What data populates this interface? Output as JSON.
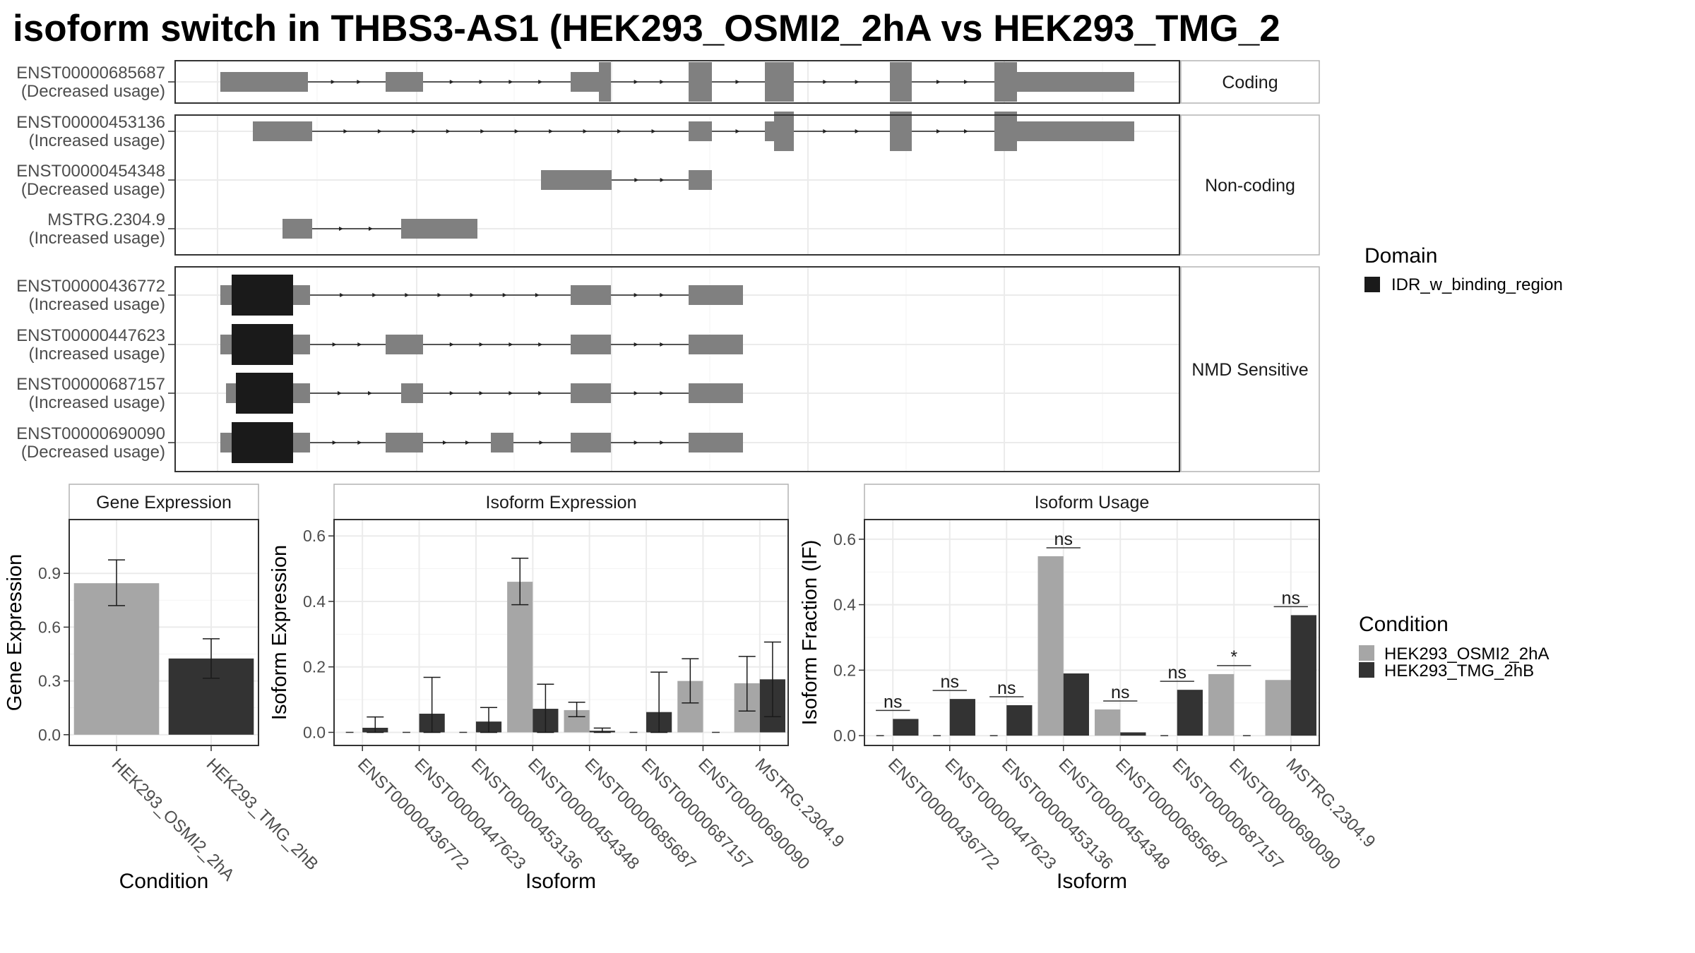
{
  "title": "isoform switch in THBS3-AS1 (HEK293_OSMI2_2hA vs HEK293_TMG_2",
  "colors": {
    "exon": "#808080",
    "domain": "#1a1a1a",
    "cond1": "#a6a6a6",
    "cond2": "#333333",
    "grid": "#ebebeb",
    "frame": "#333333",
    "strip_border": "#b3b3b3"
  },
  "structure": {
    "panels": [
      {
        "label": "Coding",
        "rows": [
          {
            "id": "ENST00000685687",
            "usage": "(Decreased usage)"
          }
        ]
      },
      {
        "label": "Non-coding",
        "rows": [
          {
            "id": "ENST00000453136",
            "usage": "(Increased usage)"
          },
          {
            "id": "ENST00000454348",
            "usage": "(Decreased usage)"
          },
          {
            "id": "MSTRG.2304.9",
            "usage": "(Increased usage)"
          }
        ]
      },
      {
        "label": "NMD Sensitive",
        "rows": [
          {
            "id": "ENST00000436772",
            "usage": "(Increased usage)"
          },
          {
            "id": "ENST00000447623",
            "usage": "(Increased usage)"
          },
          {
            "id": "ENST00000687157",
            "usage": "(Increased usage)"
          },
          {
            "id": "ENST00000690090",
            "usage": "(Decreased usage)"
          }
        ]
      }
    ]
  },
  "legend_domain": {
    "title": "Domain",
    "items": [
      "IDR_w_binding_region"
    ]
  },
  "legend_condition": {
    "title": "Condition",
    "items": [
      "HEK293_OSMI2_2hA",
      "HEK293_TMG_2hB"
    ]
  },
  "chart_data": [
    {
      "type": "bar",
      "title": "Gene Expression",
      "xlabel": "Condition",
      "ylabel": "Gene Expression",
      "ylim": [
        -0.06,
        1.2
      ],
      "yticks": [
        0.0,
        0.3,
        0.6,
        0.9
      ],
      "ytick_labels": [
        "0.0",
        "0.3",
        "0.6",
        "0.9"
      ],
      "categories": [
        "HEK293_OSMI2_2hA",
        "HEK293_TMG_2hB"
      ],
      "values": [
        0.845,
        0.425
      ],
      "errors": [
        [
          0.72,
          0.975
        ],
        [
          0.315,
          0.535
        ]
      ]
    },
    {
      "type": "bar",
      "title": "Isoform Expression",
      "xlabel": "Isoform",
      "ylabel": "Isoform Expression",
      "ylim": [
        -0.04,
        0.65
      ],
      "yticks": [
        0.0,
        0.2,
        0.4,
        0.6
      ],
      "ytick_labels": [
        "0.0",
        "0.2",
        "0.4",
        "0.6"
      ],
      "categories": [
        "ENST00000436772",
        "ENST00000447623",
        "ENST00000453136",
        "ENST00000454348",
        "ENST00000685687",
        "ENST00000687157",
        "ENST00000690090",
        "MSTRG.2304.9"
      ],
      "series": [
        {
          "name": "HEK293_OSMI2_2hA",
          "values": [
            0,
            0,
            0,
            0.46,
            0.068,
            0,
            0.157,
            0.15
          ],
          "errors": [
            null,
            null,
            null,
            [
              0.39,
              0.532
            ],
            [
              0.048,
              0.092
            ],
            null,
            [
              0.09,
              0.225
            ],
            [
              0.065,
              0.232
            ]
          ]
        },
        {
          "name": "HEK293_TMG_2hB",
          "values": [
            0.014,
            0.057,
            0.033,
            0.072,
            0.005,
            0.062,
            0,
            0.162
          ],
          "errors": [
            [
              0,
              0.047
            ],
            [
              0,
              0.168
            ],
            [
              0,
              0.076
            ],
            [
              0,
              0.147
            ],
            [
              0,
              0.013
            ],
            [
              0,
              0.184
            ],
            null,
            [
              0.048,
              0.276
            ]
          ]
        }
      ]
    },
    {
      "type": "bar",
      "title": "Isoform Usage",
      "xlabel": "Isoform",
      "ylabel": "Isoform Fraction (IF)",
      "ylim": [
        -0.03,
        0.66
      ],
      "yticks": [
        0.0,
        0.2,
        0.4,
        0.6
      ],
      "ytick_labels": [
        "0.0",
        "0.2",
        "0.4",
        "0.6"
      ],
      "categories": [
        "ENST00000436772",
        "ENST00000447623",
        "ENST00000453136",
        "ENST00000454348",
        "ENST00000685687",
        "ENST00000687157",
        "ENST00000690090",
        "MSTRG.2304.9"
      ],
      "series": [
        {
          "name": "HEK293_OSMI2_2hA",
          "values": [
            0,
            0,
            0,
            0.548,
            0.08,
            0,
            0.188,
            0.17
          ]
        },
        {
          "name": "HEK293_TMG_2hB",
          "values": [
            0.051,
            0.112,
            0.093,
            0.19,
            0.01,
            0.14,
            0,
            0.368
          ]
        }
      ],
      "significance": [
        "ns",
        "ns",
        "ns",
        "ns",
        "ns",
        "ns",
        "*",
        "ns"
      ]
    }
  ]
}
